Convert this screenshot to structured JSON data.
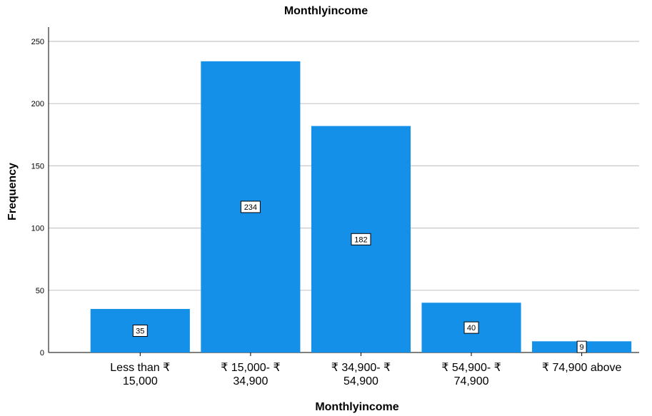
{
  "chart_data": {
    "type": "bar",
    "title": "Monthlyincome",
    "xlabel": "Monthlyincome",
    "ylabel": "Frequency",
    "categories": [
      [
        "Less than ₹",
        "15,000"
      ],
      [
        "₹ 15,000- ₹",
        "34,900"
      ],
      [
        "₹ 34,900- ₹",
        "54,900"
      ],
      [
        "₹ 54,900- ₹",
        "74,900"
      ],
      [
        "₹ 74,900 above"
      ]
    ],
    "values": [
      35,
      234,
      182,
      40,
      9
    ],
    "data_labels": [
      "35",
      "234",
      "182",
      "40",
      "9"
    ],
    "ylim": [
      0,
      250
    ],
    "yticks": [
      "0",
      "50",
      "100",
      "150",
      "200",
      "250"
    ],
    "grid": true,
    "legend": false,
    "bar_color": "#1490e8",
    "grid_color": "#c8c8c8"
  }
}
